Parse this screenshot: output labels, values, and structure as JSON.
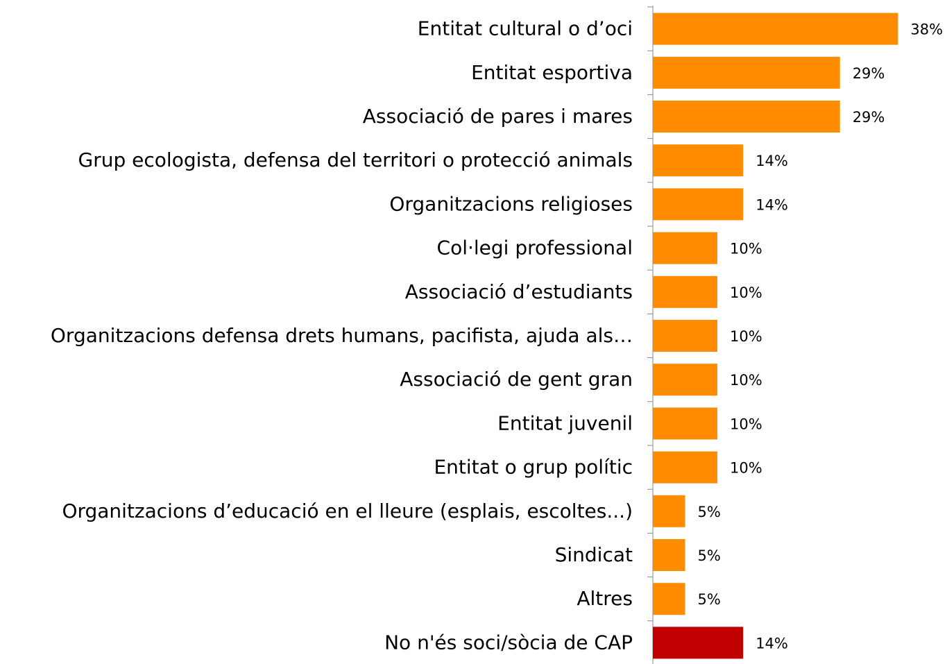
{
  "chart_data": {
    "type": "bar",
    "orientation": "horizontal",
    "categories": [
      "Entitat cultural o d’oci",
      "Entitat esportiva",
      "Associació de pares i mares",
      "Grup ecologista, defensa del territori o protecció animals",
      "Organitzacions religioses",
      "Col·legi professional",
      "Associació d’estudiants",
      "Organitzacions defensa drets humans, pacifista, ajuda als…",
      "Associació de gent gran",
      "Entitat juvenil",
      "Entitat o grup polític",
      "Organitzacions d’educació en el lleure (esplais, escoltes...)",
      "Sindicat",
      "Altres",
      "No n'és soci/sòcia de CAP"
    ],
    "values": [
      38,
      29,
      29,
      14,
      14,
      10,
      10,
      10,
      10,
      10,
      10,
      5,
      5,
      5,
      14
    ],
    "value_labels": [
      "38%",
      "29%",
      "29%",
      "14%",
      "14%",
      "10%",
      "10%",
      "10%",
      "10%",
      "10%",
      "10%",
      "5%",
      "5%",
      "5%",
      "14%"
    ],
    "colors": [
      "#ff8c00",
      "#ff8c00",
      "#ff8c00",
      "#ff8c00",
      "#ff8c00",
      "#ff8c00",
      "#ff8c00",
      "#ff8c00",
      "#ff8c00",
      "#ff8c00",
      "#ff8c00",
      "#ff8c00",
      "#ff8c00",
      "#ff8c00",
      "#c00000"
    ]
  }
}
